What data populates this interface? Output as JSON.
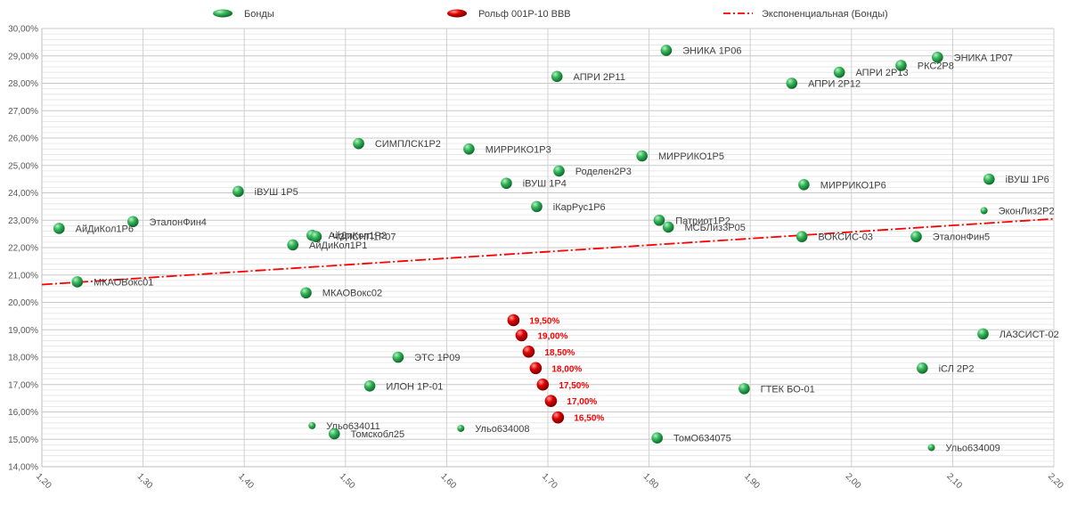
{
  "chart_data": {
    "type": "scatter",
    "title": "",
    "xlabel": "",
    "ylabel": "",
    "xlim": [
      1.2,
      2.2
    ],
    "ylim": [
      14,
      30
    ],
    "grid": true,
    "legend_position": "top",
    "x_ticks": [
      "1,20",
      "1,30",
      "1,40",
      "1,50",
      "1,60",
      "1,70",
      "1,80",
      "1,90",
      "2,00",
      "2,10",
      "2,20"
    ],
    "y_ticks": [
      "14,00%",
      "15,00%",
      "16,00%",
      "17,00%",
      "18,00%",
      "19,00%",
      "20,00%",
      "21,00%",
      "22,00%",
      "23,00%",
      "24,00%",
      "25,00%",
      "26,00%",
      "27,00%",
      "28,00%",
      "29,00%",
      "30,00%"
    ],
    "legend": [
      {
        "label": "Бонды",
        "kind": "bonds"
      },
      {
        "label": "Рольф 001P-10 BBB",
        "kind": "rolf"
      },
      {
        "label": "Экспоненциальная (Бонды)",
        "kind": "trend"
      }
    ],
    "colors": {
      "bonds": "#21a64b",
      "rolf": "#e00000",
      "trend": "#ff0000",
      "grid": "#d9d9d9"
    },
    "series": [
      {
        "name": "Бонды",
        "points": [
          {
            "x": 1.217,
            "y": 22.7,
            "label": "АйДиКол1Р6"
          },
          {
            "x": 1.29,
            "y": 22.95,
            "label": "ЭталонФин4"
          },
          {
            "x": 1.235,
            "y": 20.75,
            "label": "МКАОВокс01"
          },
          {
            "x": 1.394,
            "y": 24.05,
            "label": "iВУШ 1Р5"
          },
          {
            "x": 1.448,
            "y": 22.1,
            "label": "АйДиКол1Р1"
          },
          {
            "x": 1.467,
            "y": 22.45,
            "label": "АйДиКол1Р2"
          },
          {
            "x": 1.471,
            "y": 22.4,
            "label": "ЧЗПСНП1Р07"
          },
          {
            "x": 1.461,
            "y": 20.35,
            "label": "МКАОВокс02"
          },
          {
            "x": 1.513,
            "y": 25.8,
            "label": "СИМПЛСК1Р2"
          },
          {
            "x": 1.552,
            "y": 18.0,
            "label": "ЭТС 1Р09"
          },
          {
            "x": 1.524,
            "y": 16.95,
            "label": "ИЛОН 1Р-01"
          },
          {
            "x": 1.467,
            "y": 15.5,
            "label": "Ульо634011"
          },
          {
            "x": 1.489,
            "y": 15.2,
            "label": "Томскобл25"
          },
          {
            "x": 1.614,
            "y": 15.4,
            "label": "Ульо634008"
          },
          {
            "x": 1.622,
            "y": 25.6,
            "label": "МИРРИКО1Р3"
          },
          {
            "x": 1.659,
            "y": 24.35,
            "label": "iВУШ 1Р4"
          },
          {
            "x": 1.709,
            "y": 28.25,
            "label": "АПРИ 2Р11"
          },
          {
            "x": 1.711,
            "y": 24.8,
            "label": "Роделен2Р3"
          },
          {
            "x": 1.689,
            "y": 23.5,
            "label": "iКарРус1Р6"
          },
          {
            "x": 1.793,
            "y": 25.35,
            "label": "МИРРИКО1Р5"
          },
          {
            "x": 1.817,
            "y": 29.2,
            "label": "ЭНИКА 1Р06"
          },
          {
            "x": 1.81,
            "y": 23.0,
            "label": "Патриот1Р2"
          },
          {
            "x": 1.819,
            "y": 22.75,
            "label": "МСБЛиз3Р05"
          },
          {
            "x": 1.808,
            "y": 15.05,
            "label": "ТомО634075"
          },
          {
            "x": 1.894,
            "y": 16.85,
            "label": "ГТЕК БО-01"
          },
          {
            "x": 1.941,
            "y": 28.0,
            "label": "АПРИ 2Р12"
          },
          {
            "x": 1.988,
            "y": 28.4,
            "label": "АПРИ 2Р13"
          },
          {
            "x": 1.953,
            "y": 24.3,
            "label": "МИРРИКО1Р6"
          },
          {
            "x": 1.951,
            "y": 22.4,
            "label": "ВОКСИС-03"
          },
          {
            "x": 2.049,
            "y": 28.65,
            "label": "РКС2Р8"
          },
          {
            "x": 2.085,
            "y": 28.95,
            "label": "ЭНИКА 1Р07"
          },
          {
            "x": 2.064,
            "y": 22.4,
            "label": "ЭталонФин5"
          },
          {
            "x": 2.136,
            "y": 24.5,
            "label": "iВУШ 1Р6"
          },
          {
            "x": 2.131,
            "y": 23.35,
            "label": "ЭконЛиз2Р2"
          },
          {
            "x": 2.13,
            "y": 18.85,
            "label": "ЛАЗСИСТ-02"
          },
          {
            "x": 2.07,
            "y": 17.6,
            "label": "iСЛ 2Р2"
          },
          {
            "x": 2.079,
            "y": 14.7,
            "label": "Ульо634009"
          }
        ]
      },
      {
        "name": "Рольф 001P-10 BBB",
        "points": [
          {
            "x": 1.666,
            "y": 19.35,
            "label": "19,50%"
          },
          {
            "x": 1.674,
            "y": 18.8,
            "label": "19,00%"
          },
          {
            "x": 1.681,
            "y": 18.2,
            "label": "18,50%"
          },
          {
            "x": 1.688,
            "y": 17.6,
            "label": "18,00%"
          },
          {
            "x": 1.695,
            "y": 17.0,
            "label": "17,50%"
          },
          {
            "x": 1.703,
            "y": 16.4,
            "label": "17,00%"
          },
          {
            "x": 1.71,
            "y": 15.8,
            "label": "16,50%"
          }
        ]
      },
      {
        "name": "Экспоненциальная (Бонды)",
        "points": [
          {
            "x": 1.2,
            "y": 20.65
          },
          {
            "x": 2.2,
            "y": 23.05
          }
        ]
      }
    ]
  }
}
